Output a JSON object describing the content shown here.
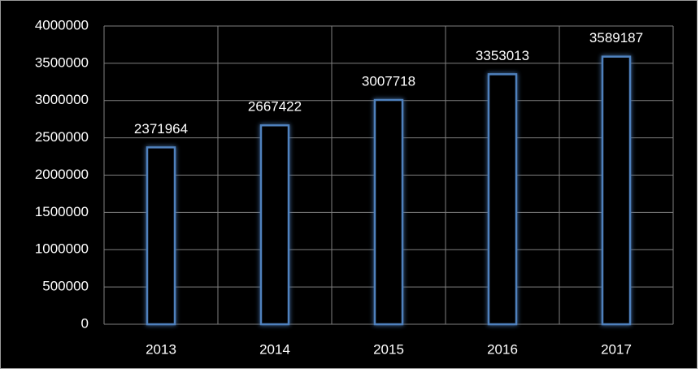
{
  "chart_data": {
    "type": "bar",
    "categories": [
      "2013",
      "2014",
      "2015",
      "2016",
      "2017"
    ],
    "values": [
      2371964,
      2667422,
      3007718,
      3353013,
      3589187
    ],
    "color": "#4f81bd",
    "ylim": [
      0,
      4000000
    ],
    "yticks": [
      0,
      500000,
      1000000,
      1500000,
      2000000,
      2500000,
      3000000,
      3500000,
      4000000
    ],
    "grid": true
  }
}
